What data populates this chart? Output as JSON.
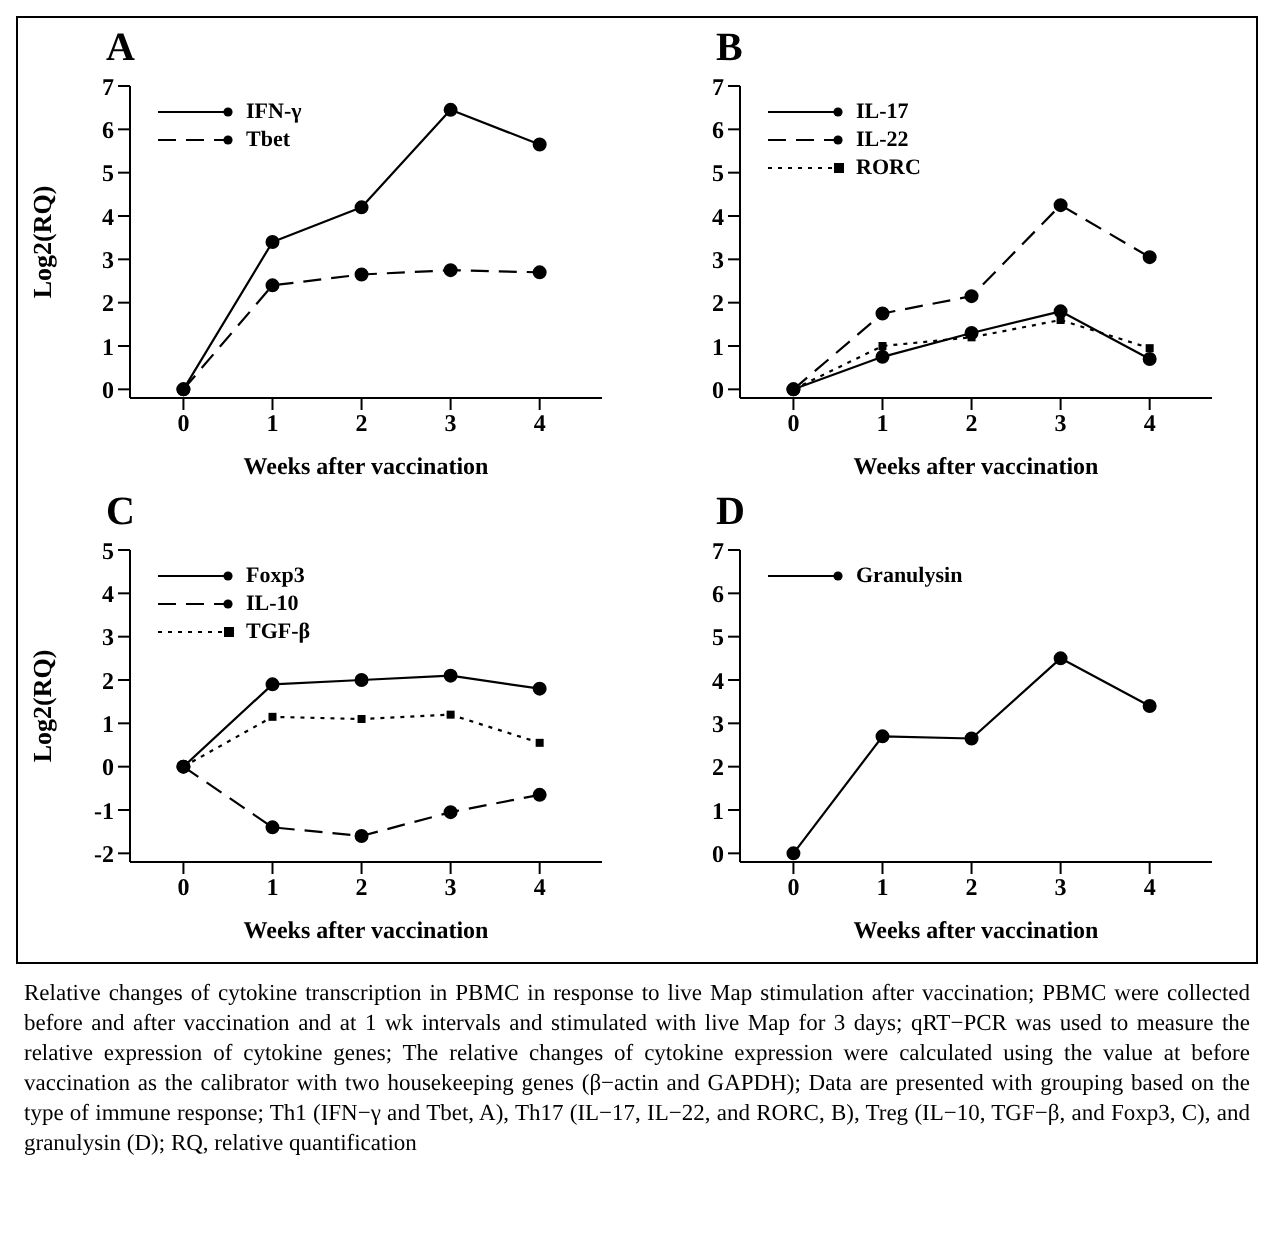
{
  "chart_data": [
    {
      "type": "line",
      "title": "A",
      "xlabel": "Weeks after vaccination",
      "ylabel": "Log2(RQ)",
      "x": [
        0,
        1,
        2,
        3,
        4
      ],
      "xlim": [
        -0.6,
        4.7
      ],
      "xticks": [
        0,
        1,
        2,
        3,
        4
      ],
      "ylim": [
        -0.2,
        7
      ],
      "yticks": [
        0,
        1,
        2,
        3,
        4,
        5,
        6,
        7
      ],
      "legend": "top left",
      "series": [
        {
          "name": "IFN-γ",
          "color": "#000000",
          "values": [
            0,
            3.4,
            4.2,
            6.45,
            5.65
          ],
          "marker": "circle",
          "line_style": "solid"
        },
        {
          "name": "Tbet",
          "color": "#000000",
          "values": [
            0,
            2.4,
            2.65,
            2.75,
            2.7
          ],
          "marker": "circle",
          "line_style": "dashed"
        }
      ]
    },
    {
      "type": "line",
      "title": "B",
      "xlabel": "Weeks after vaccination",
      "x": [
        0,
        1,
        2,
        3,
        4
      ],
      "xlim": [
        -0.6,
        4.7
      ],
      "xticks": [
        0,
        1,
        2,
        3,
        4
      ],
      "ylim": [
        -0.2,
        7
      ],
      "yticks": [
        0,
        1,
        2,
        3,
        4,
        5,
        6,
        7
      ],
      "legend": "top left",
      "series": [
        {
          "name": "IL-17",
          "color": "#000000",
          "values": [
            0,
            0.75,
            1.3,
            1.8,
            0.7
          ],
          "marker": "circle",
          "line_style": "solid"
        },
        {
          "name": "IL-22",
          "color": "#000000",
          "values": [
            0,
            1.75,
            2.15,
            4.25,
            3.05
          ],
          "marker": "circle",
          "line_style": "dashed"
        },
        {
          "name": "RORC",
          "color": "#000000",
          "values": [
            0,
            1.0,
            1.2,
            1.6,
            0.95
          ],
          "marker": "square",
          "line_style": "dotted"
        }
      ]
    },
    {
      "type": "line",
      "title": "C",
      "xlabel": "Weeks after vaccination",
      "ylabel": "Log2(RQ)",
      "x": [
        0,
        1,
        2,
        3,
        4
      ],
      "xlim": [
        -0.6,
        4.7
      ],
      "xticks": [
        0,
        1,
        2,
        3,
        4
      ],
      "ylim": [
        -2.2,
        5
      ],
      "yticks": [
        -2,
        -1,
        0,
        1,
        2,
        3,
        4,
        5
      ],
      "legend": "top left",
      "series": [
        {
          "name": "Foxp3",
          "color": "#000000",
          "values": [
            0,
            1.9,
            2.0,
            2.1,
            1.8
          ],
          "marker": "circle",
          "line_style": "solid"
        },
        {
          "name": "IL-10",
          "color": "#000000",
          "values": [
            0,
            -1.4,
            -1.6,
            -1.05,
            -0.65
          ],
          "marker": "circle",
          "line_style": "dashed"
        },
        {
          "name": "TGF-β",
          "color": "#000000",
          "values": [
            0,
            1.15,
            1.1,
            1.2,
            0.55
          ],
          "marker": "square",
          "line_style": "dotted"
        }
      ]
    },
    {
      "type": "line",
      "title": "D",
      "xlabel": "Weeks after vaccination",
      "x": [
        0,
        1,
        2,
        3,
        4
      ],
      "xlim": [
        -0.6,
        4.7
      ],
      "xticks": [
        0,
        1,
        2,
        3,
        4
      ],
      "ylim": [
        -0.2,
        7
      ],
      "yticks": [
        0,
        1,
        2,
        3,
        4,
        5,
        6,
        7
      ],
      "legend": "top left",
      "series": [
        {
          "name": "Granulysin",
          "color": "#000000",
          "values": [
            0,
            2.7,
            2.65,
            4.5,
            3.4
          ],
          "marker": "circle",
          "line_style": "solid"
        }
      ],
      "annotations": [
        "Relative changes of cytokine transcription in PBMC in response to live Map stimulation after vaccination; PBMC were collected before and after vaccination and at 1 wk intervals and stimulated with live Map for 3 days; qRT−PCR was used to measure the relative expression of cytokine genes; The relative changes of cytokine expression were calculated using the value at before vaccination as the calibrator with two housekeeping genes (β−actin and GAPDH); Data are presented with grouping based on the type of immune response; Th1 (IFN−γ and Tbet, A), Th17 (IL−17, IL−22, and RORC, B), Treg (IL−10, TGF−β, and Foxp3, C), and granulysin (D); RQ, relative quantification"
      ]
    }
  ]
}
